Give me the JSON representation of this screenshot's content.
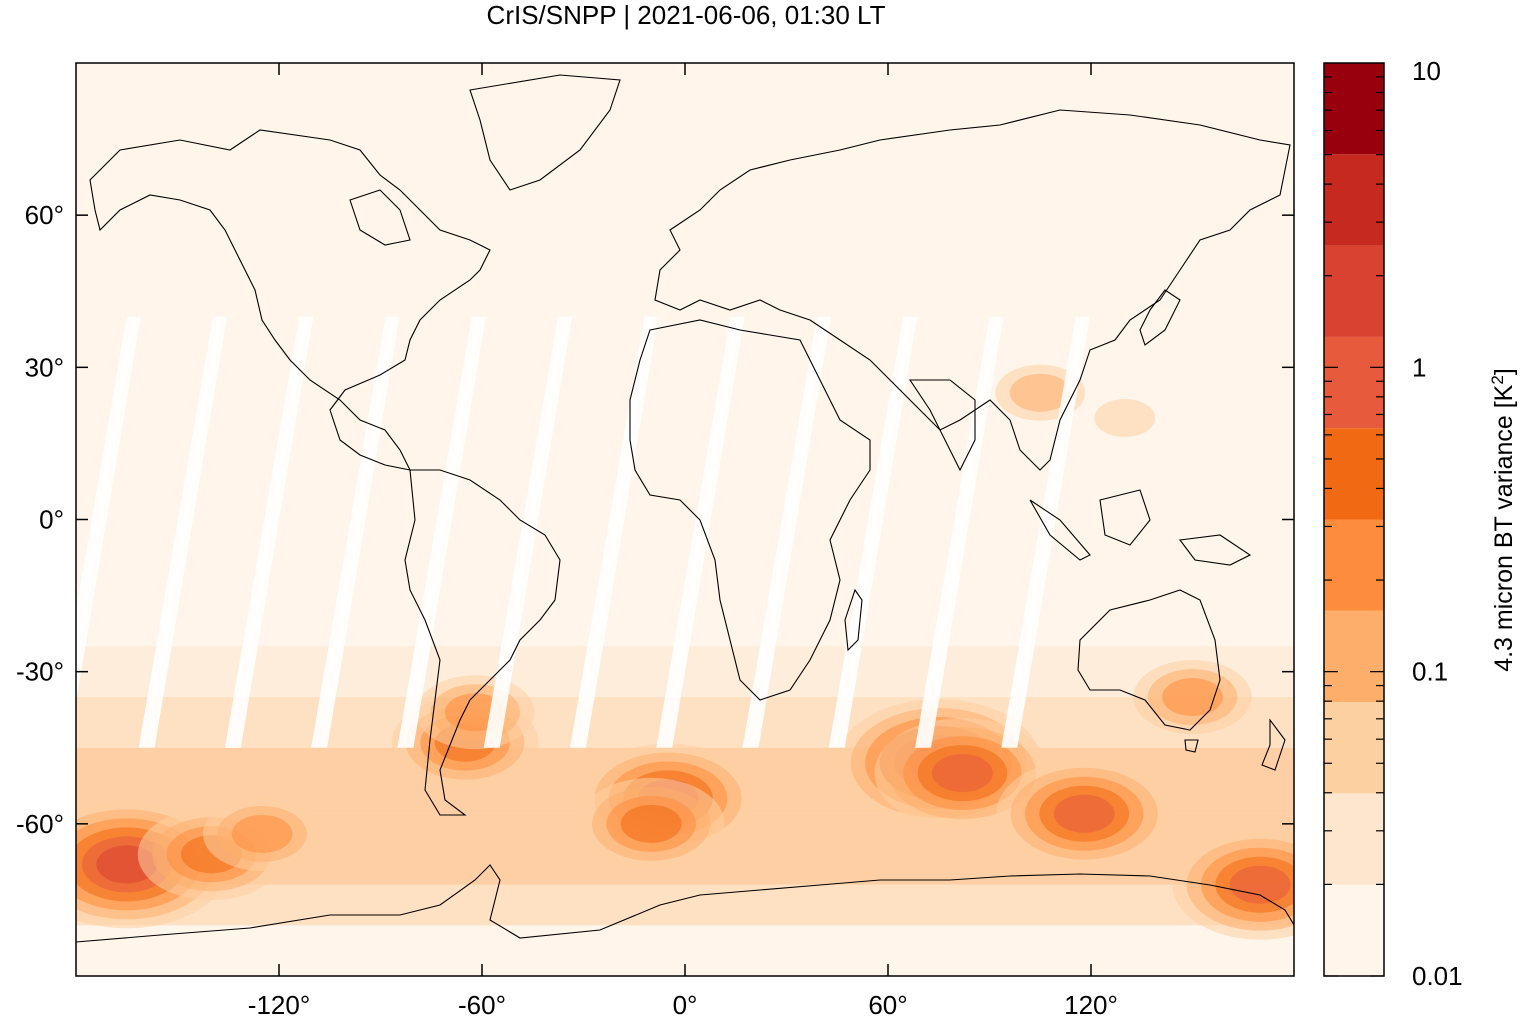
{
  "title": "CrIS/SNPP | 2021-06-06, 01:30 LT",
  "map": {
    "x_range": [
      -180,
      180
    ],
    "y_range": [
      -90,
      90
    ],
    "x_ticks": [
      {
        "value": -120,
        "label": "-120°"
      },
      {
        "value": -60,
        "label": "-60°"
      },
      {
        "value": 0,
        "label": "0°"
      },
      {
        "value": 60,
        "label": "60°"
      },
      {
        "value": 120,
        "label": "120°"
      }
    ],
    "y_ticks": [
      {
        "value": 60,
        "label": "60°"
      },
      {
        "value": 30,
        "label": "30°"
      },
      {
        "value": 0,
        "label": "0°"
      },
      {
        "value": -30,
        "label": "-30°"
      },
      {
        "value": -60,
        "label": "-60°"
      }
    ],
    "coastline_color": "#000000",
    "swath_gap_color": "#ffffff",
    "hotspots": [
      {
        "lon": -165,
        "lat": -68,
        "level": 6
      },
      {
        "lon": -140,
        "lat": -66,
        "level": 4
      },
      {
        "lon": -125,
        "lat": -62,
        "level": 3
      },
      {
        "lon": -65,
        "lat": -44,
        "level": 4
      },
      {
        "lon": -62,
        "lat": -38,
        "level": 3
      },
      {
        "lon": -5,
        "lat": -55,
        "level": 5
      },
      {
        "lon": -10,
        "lat": -60,
        "level": 4
      },
      {
        "lon": 75,
        "lat": -48,
        "level": 6
      },
      {
        "lon": 82,
        "lat": -50,
        "level": 5
      },
      {
        "lon": 118,
        "lat": -58,
        "level": 5
      },
      {
        "lon": 170,
        "lat": -72,
        "level": 5
      },
      {
        "lon": 150,
        "lat": -35,
        "level": 3
      },
      {
        "lon": 105,
        "lat": 25,
        "level": 2
      },
      {
        "lon": 130,
        "lat": 20,
        "level": 1
      }
    ]
  },
  "colorbar": {
    "label_main": "4.3 micron BT variance [K",
    "label_sup": "2",
    "label_end": "]",
    "scale": "log",
    "range": [
      0.01,
      10
    ],
    "tick_labels": [
      "10",
      "1",
      "0.1",
      "0.01"
    ],
    "colors": [
      "#fff5eb",
      "#fee6ce",
      "#fdd0a2",
      "#fdae6b",
      "#fd8d3c",
      "#f16913",
      "#e85a3c",
      "#d94130",
      "#c62a1e",
      "#99000d"
    ]
  }
}
